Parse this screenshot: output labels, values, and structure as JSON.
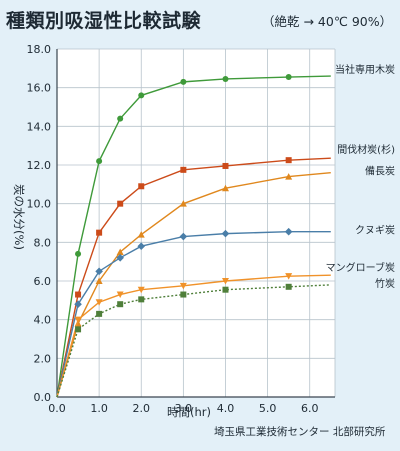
{
  "title": "種類別吸湿性比較試験",
  "subtitle": "（絶乾 → 40℃ 90%）",
  "source": "埼玉県工業技術センター 北部研究所",
  "chart_data": {
    "type": "line",
    "xlabel": "時間(hr)",
    "ylabel": "炭の水分(%)",
    "xlim": [
      0,
      6.6
    ],
    "ylim": [
      0,
      18
    ],
    "xticks": [
      "0.0",
      "1.0",
      "2.0",
      "3.0",
      "4.0",
      "5.0",
      "6.0"
    ],
    "yticks": [
      "0.0",
      "2.0",
      "4.0",
      "6.0",
      "8.0",
      "10.0",
      "12.0",
      "14.0",
      "16.0",
      "18.0"
    ],
    "grid": true,
    "series": [
      {
        "name": "当社専用木炭",
        "color": "#3f9a3a",
        "marker": "circle",
        "line": "solid",
        "points": [
          [
            0,
            0
          ],
          [
            0.5,
            7.4
          ],
          [
            1.0,
            12.2
          ],
          [
            1.5,
            14.4
          ],
          [
            2.0,
            15.6
          ],
          [
            3.0,
            16.3
          ],
          [
            4.0,
            16.45
          ],
          [
            5.5,
            16.55
          ],
          [
            6.5,
            16.6
          ]
        ]
      },
      {
        "name": "間伐材炭(杉)",
        "color": "#cc4b1a",
        "marker": "square",
        "line": "solid",
        "points": [
          [
            0,
            0
          ],
          [
            0.5,
            5.3
          ],
          [
            1.0,
            8.5
          ],
          [
            1.5,
            10.0
          ],
          [
            2.0,
            10.9
          ],
          [
            3.0,
            11.75
          ],
          [
            4.0,
            11.95
          ],
          [
            5.5,
            12.25
          ],
          [
            6.5,
            12.35
          ]
        ]
      },
      {
        "name": "備長炭",
        "color": "#e0881e",
        "marker": "triangle",
        "line": "solid",
        "points": [
          [
            0,
            0
          ],
          [
            0.5,
            3.8
          ],
          [
            1.0,
            6.0
          ],
          [
            1.5,
            7.5
          ],
          [
            2.0,
            8.4
          ],
          [
            3.0,
            10.0
          ],
          [
            4.0,
            10.8
          ],
          [
            5.5,
            11.4
          ],
          [
            6.5,
            11.6
          ]
        ]
      },
      {
        "name": "クヌギ炭",
        "color": "#4a7ea8",
        "marker": "diamond",
        "line": "solid",
        "points": [
          [
            0,
            0
          ],
          [
            0.5,
            4.8
          ],
          [
            1.0,
            6.5
          ],
          [
            1.5,
            7.2
          ],
          [
            2.0,
            7.8
          ],
          [
            3.0,
            8.3
          ],
          [
            4.0,
            8.45
          ],
          [
            5.5,
            8.55
          ],
          [
            6.5,
            8.55
          ]
        ]
      },
      {
        "name": "マングローブ炭",
        "color": "#f0922a",
        "marker": "triangle-down",
        "line": "solid",
        "points": [
          [
            0,
            0
          ],
          [
            0.5,
            4.0
          ],
          [
            1.0,
            4.9
          ],
          [
            1.5,
            5.3
          ],
          [
            2.0,
            5.55
          ],
          [
            3.0,
            5.75
          ],
          [
            4.0,
            6.0
          ],
          [
            5.5,
            6.25
          ],
          [
            6.5,
            6.3
          ]
        ]
      },
      {
        "name": "竹炭",
        "color": "#4f7f3a",
        "marker": "square",
        "line": "dotted",
        "points": [
          [
            0,
            0
          ],
          [
            0.5,
            3.5
          ],
          [
            1.0,
            4.3
          ],
          [
            1.5,
            4.8
          ],
          [
            2.0,
            5.05
          ],
          [
            3.0,
            5.3
          ],
          [
            4.0,
            5.55
          ],
          [
            5.5,
            5.7
          ],
          [
            6.5,
            5.8
          ]
        ]
      }
    ]
  }
}
